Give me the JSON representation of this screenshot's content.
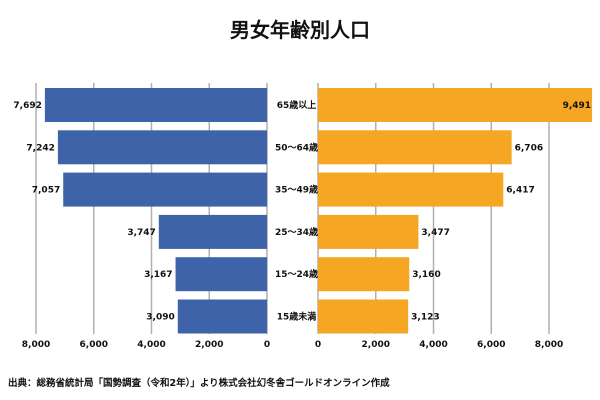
{
  "chart_data": {
    "type": "bar",
    "orientation": "horizontal-pyramid",
    "title": "男女年齢別人口",
    "categories": [
      "65歳以上",
      "50〜64歳",
      "35〜49歳",
      "25〜34歳",
      "15〜24歳",
      "15歳未満"
    ],
    "series": [
      {
        "side": "left",
        "color": "#3f63a8",
        "values": [
          7692,
          7242,
          7057,
          3747,
          3167,
          3090
        ],
        "labels": [
          "7,692",
          "7,242",
          "7,057",
          "3,747",
          "3,167",
          "3,090"
        ]
      },
      {
        "side": "right",
        "color": "#f5a623",
        "values": [
          9491,
          6706,
          6417,
          3477,
          3160,
          3123
        ],
        "labels": [
          "9,491",
          "6,706",
          "6,417",
          "3,477",
          "3,160",
          "3,123"
        ]
      }
    ],
    "left_axis": {
      "range": [
        8000,
        0
      ],
      "ticks": [
        8000,
        6000,
        4000,
        2000,
        0
      ],
      "tick_labels": [
        "8,000",
        "6,000",
        "4,000",
        "2,000",
        "0"
      ]
    },
    "right_axis": {
      "range": [
        0,
        9500
      ],
      "ticks": [
        0,
        2000,
        4000,
        6000,
        8000
      ],
      "tick_labels": [
        "0",
        "2,000",
        "4,000",
        "6,000",
        "8,000"
      ]
    },
    "grid": true,
    "grid_color": "#b0b0b0",
    "source": "出典：総務省統計局「国勢調査（令和2年）」より株式会社幻冬舎ゴールドオンライン作成"
  }
}
